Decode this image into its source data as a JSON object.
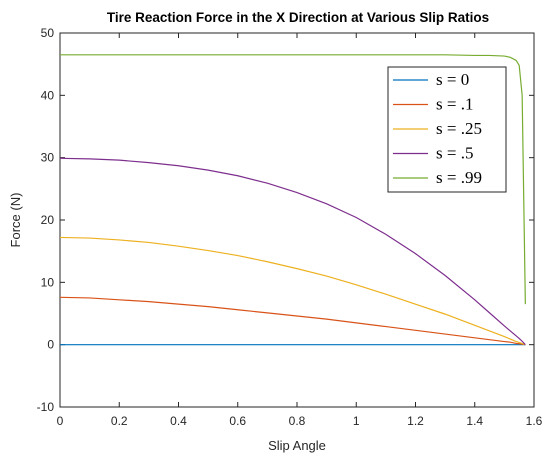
{
  "chart_data": {
    "type": "line",
    "title": "Tire Reaction Force in the X Direction at Various Slip Ratios",
    "xlabel": "Slip Angle",
    "ylabel": "Force (N)",
    "xlim": [
      0,
      1.6
    ],
    "ylim": [
      -10,
      50
    ],
    "xticks": [
      "0",
      "0.2",
      "0.4",
      "0.6",
      "0.8",
      "1",
      "1.2",
      "1.4",
      "1.6"
    ],
    "yticks": [
      "-10",
      "0",
      "10",
      "20",
      "30",
      "40",
      "50"
    ],
    "grid": false,
    "legend_position": "top-right",
    "x": [
      0,
      0.1,
      0.2,
      0.3,
      0.4,
      0.5,
      0.6,
      0.7,
      0.8,
      0.9,
      1.0,
      1.1,
      1.2,
      1.3,
      1.4,
      1.45,
      1.5,
      1.52,
      1.54,
      1.55,
      1.56,
      1.5708
    ],
    "series": [
      {
        "name": "s = 0",
        "color": "#0072BD",
        "values": [
          0,
          0,
          0,
          0,
          0,
          0,
          0,
          0,
          0,
          0,
          0,
          0,
          0,
          0,
          0,
          0,
          0,
          0,
          0,
          0,
          0,
          0
        ]
      },
      {
        "name": "s = .1",
        "color": "#D95319",
        "values": [
          7.6,
          7.5,
          7.2,
          6.9,
          6.5,
          6.1,
          5.6,
          5.1,
          4.6,
          4.1,
          3.5,
          2.9,
          2.3,
          1.7,
          1.1,
          0.8,
          0.5,
          0.4,
          0.2,
          0.15,
          0.08,
          0
        ]
      },
      {
        "name": "s = .25",
        "color": "#EDB120",
        "values": [
          17.2,
          17.1,
          16.8,
          16.4,
          15.8,
          15.1,
          14.3,
          13.3,
          12.2,
          11.0,
          9.6,
          8.1,
          6.5,
          4.9,
          3.1,
          2.2,
          1.3,
          0.9,
          0.5,
          0.35,
          0.18,
          0
        ]
      },
      {
        "name": "s = .5",
        "color": "#7E2F8E",
        "values": [
          29.9,
          29.8,
          29.6,
          29.2,
          28.7,
          28.0,
          27.1,
          25.9,
          24.4,
          22.6,
          20.4,
          17.7,
          14.6,
          11.1,
          7.2,
          5.1,
          3.0,
          2.2,
          1.4,
          1.0,
          0.55,
          0
        ]
      },
      {
        "name": "s = .99",
        "color": "#77AC30",
        "values": [
          46.5,
          46.5,
          46.5,
          46.5,
          46.5,
          46.5,
          46.5,
          46.5,
          46.5,
          46.5,
          46.5,
          46.5,
          46.5,
          46.5,
          46.4,
          46.4,
          46.3,
          46.1,
          45.6,
          44.8,
          40.0,
          6.5
        ]
      }
    ]
  }
}
